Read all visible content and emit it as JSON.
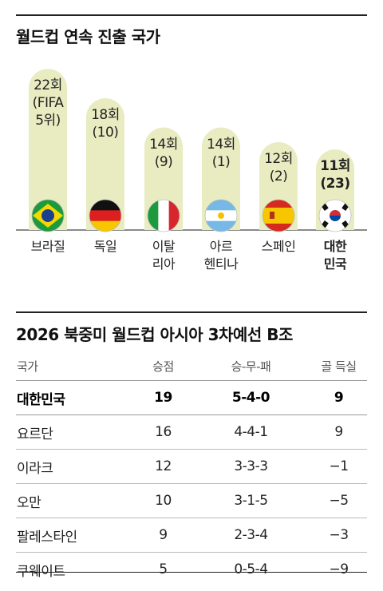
{
  "chart_title": "월드컵 연속 진출 국가",
  "chart_data": {
    "type": "bar",
    "title": "월드컵 연속 진출 국가",
    "categories": [
      "브라질",
      "독일",
      "이탈리아",
      "아르헨티나",
      "스페인",
      "대한민국"
    ],
    "category_lines": [
      [
        "브라질"
      ],
      [
        "독일"
      ],
      [
        "이탈",
        "리아"
      ],
      [
        "아르",
        "헨티나"
      ],
      [
        "스페인"
      ],
      [
        "대한",
        "민국"
      ]
    ],
    "values": [
      22,
      18,
      14,
      14,
      12,
      11
    ],
    "value_labels": [
      "22회",
      "18회",
      "14회",
      "14회",
      "12회",
      "11회"
    ],
    "rank_labels": [
      "(FIFA 5위)",
      "(10)",
      "(9)",
      "(1)",
      "(2)",
      "(23)"
    ],
    "rank_lines": [
      [
        "(FIFA",
        "5위)"
      ],
      [
        "(10)"
      ],
      [
        "(9)"
      ],
      [
        "(1)"
      ],
      [
        "(2)"
      ],
      [
        "(23)"
      ]
    ],
    "flags": [
      "brazil-flag",
      "germany-flag",
      "italy-flag",
      "argentina-flag",
      "spain-flag",
      "korea-flag"
    ],
    "highlight_index": 5,
    "bar_color": "#e8ecc0",
    "ylim": [
      0,
      24
    ]
  },
  "table": {
    "title": "2026 북중미 월드컵 아시아 3차예선 B조",
    "headers": [
      "국가",
      "승점",
      "승-무-패",
      "골 득실"
    ],
    "rows": [
      [
        "대한민국",
        "19",
        "5-4-0",
        "9"
      ],
      [
        "요르단",
        "16",
        "4-4-1",
        "9"
      ],
      [
        "이라크",
        "12",
        "3-3-3",
        "−1"
      ],
      [
        "오만",
        "10",
        "3-1-5",
        "−5"
      ],
      [
        "팔레스타인",
        "9",
        "2-3-4",
        "−3"
      ],
      [
        "쿠웨이트",
        "5",
        "0-5-4",
        "−9"
      ]
    ]
  }
}
